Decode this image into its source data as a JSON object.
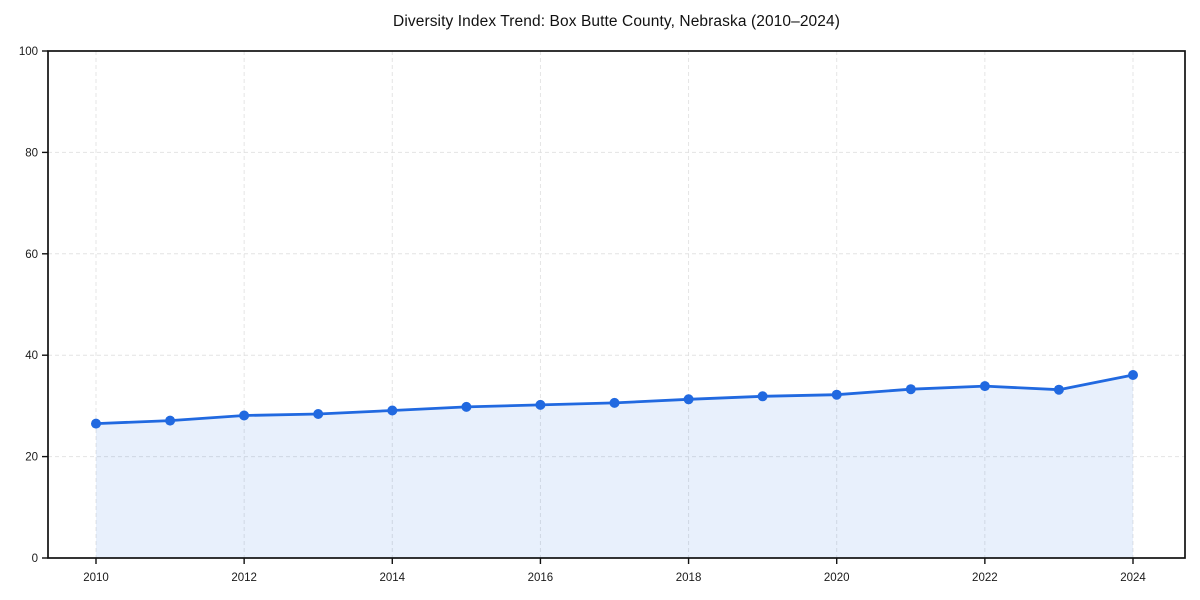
{
  "chart_data": {
    "type": "area",
    "title": "Diversity Index Trend: Box Butte County, Nebraska (2010–2024)",
    "series_name": "Diversity Index",
    "x": [
      2010,
      2011,
      2012,
      2013,
      2014,
      2015,
      2016,
      2017,
      2018,
      2019,
      2020,
      2021,
      2022,
      2023,
      2024
    ],
    "values": [
      26.5,
      27.1,
      28.1,
      28.4,
      29.1,
      29.8,
      30.2,
      30.6,
      31.3,
      31.9,
      32.2,
      33.3,
      33.9,
      33.2,
      36.1
    ],
    "xlabel": "",
    "ylabel": "",
    "ylim": [
      0,
      100
    ],
    "y_ticks": [
      0,
      20,
      40,
      60,
      80,
      100
    ],
    "x_ticks": [
      2010,
      2012,
      2014,
      2016,
      2018,
      2020,
      2022,
      2024
    ],
    "grid": true,
    "grid_style": "dashed",
    "legend": "none",
    "colors": {
      "line": "#2169e0",
      "marker": "#2169e0",
      "fill": "rgba(33, 105, 224, 0.10)",
      "grid": "#e0e0e0",
      "axis_border": "#111111",
      "tick_label": "#1a1a1a",
      "title": "#111111",
      "background": "#ffffff"
    }
  }
}
